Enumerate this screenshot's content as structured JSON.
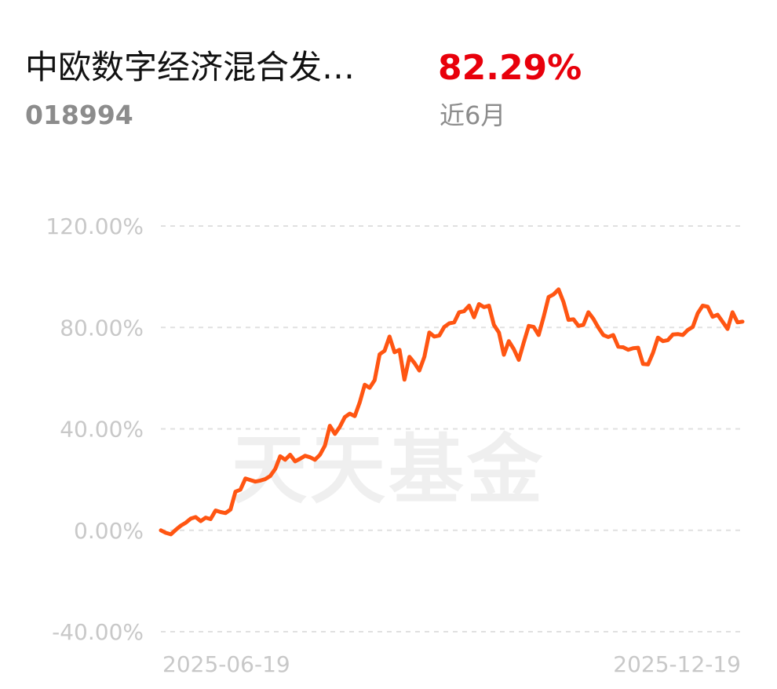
{
  "header": {
    "fund_name": "中欧数字经济混合发…",
    "fund_code": "018994",
    "return_value": "82.29%",
    "return_period": "近6月"
  },
  "watermark": "天天基金",
  "colors": {
    "line": "#ff5512",
    "return_text": "#e8000b",
    "grid": "#e0e0e0",
    "tick_text": "#c8c8c8",
    "watermark": "#efefef"
  },
  "chart_data": {
    "type": "line",
    "title": "",
    "xlabel": "",
    "ylabel": "",
    "ylim": [
      -40,
      120
    ],
    "grid": true,
    "y_ticks": [
      "120.00%",
      "80.00%",
      "40.00%",
      "0.00%",
      "-40.00%"
    ],
    "y_tick_values": [
      120,
      80,
      40,
      0,
      -40
    ],
    "x_tick_labels": [
      "2025-06-19",
      "2025-12-19"
    ],
    "series": [
      {
        "values": [
          0.0,
          -1.0,
          -1.6,
          0.2,
          1.8,
          3.0,
          4.6,
          5.2,
          3.6,
          5.0,
          4.4,
          7.8,
          7.2,
          6.8,
          8.2,
          15.2,
          16.0,
          20.4,
          19.8,
          19.2,
          19.6,
          20.2,
          21.4,
          24.2,
          29.2,
          27.8,
          29.8,
          27.2,
          28.2,
          29.4,
          28.8,
          27.8,
          29.8,
          33.4,
          41.2,
          38.0,
          40.8,
          44.6,
          46.0,
          45.0,
          50.4,
          57.4,
          56.2,
          59.2,
          69.4,
          70.8,
          76.4,
          70.2,
          71.2,
          59.4,
          68.4,
          66.0,
          63.0,
          68.4,
          78.0,
          76.4,
          76.8,
          80.2,
          81.6,
          82.0,
          86.0,
          86.4,
          88.6,
          84.0,
          89.2,
          88.0,
          88.6,
          81.0,
          78.0,
          69.2,
          74.6,
          71.4,
          67.2,
          74.0,
          80.6,
          80.2,
          77.0,
          84.2,
          92.0,
          93.0,
          95.0,
          90.0,
          83.0,
          83.2,
          80.6,
          81.0,
          86.0,
          83.4,
          80.0,
          77.0,
          76.2,
          77.0,
          72.4,
          72.2,
          71.2,
          71.8,
          72.0,
          65.6,
          65.4,
          70.0,
          76.0,
          74.6,
          75.0,
          77.2,
          77.4,
          77.0,
          79.0,
          80.2,
          85.6,
          88.6,
          88.2,
          84.2,
          85.0,
          82.2,
          79.4,
          86.0,
          82.0,
          82.29
        ]
      }
    ]
  }
}
